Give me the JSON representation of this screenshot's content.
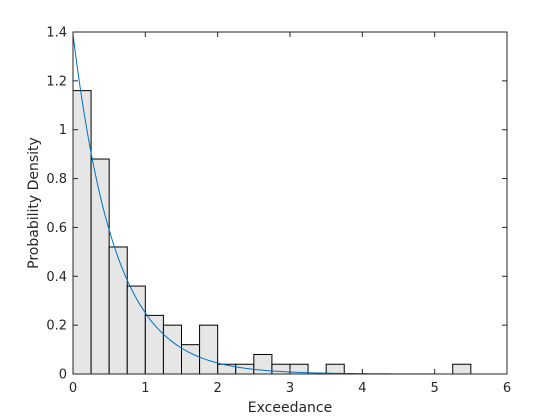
{
  "chart_data": {
    "type": "bar",
    "xlabel": "Exceedance",
    "ylabel": "Probability Density",
    "xlim": [
      0,
      6
    ],
    "ylim": [
      0,
      1.4
    ],
    "xticks": [
      0,
      1,
      2,
      3,
      4,
      5,
      6
    ],
    "yticks": [
      0,
      0.2,
      0.4,
      0.6,
      0.8,
      1,
      1.2,
      1.4
    ],
    "xtick_labels": [
      "0",
      "1",
      "2",
      "3",
      "4",
      "5",
      "6"
    ],
    "ytick_labels": [
      "0",
      "0.2",
      "0.4",
      "0.6",
      "0.8",
      "1",
      "1.2",
      "1.4"
    ],
    "grid": false,
    "box": true,
    "histogram": {
      "bin_edges": [
        0,
        0.25,
        0.5,
        0.75,
        1.0,
        1.25,
        1.5,
        1.75,
        2.0,
        2.25,
        2.5,
        2.75,
        3.0,
        3.25,
        3.5,
        3.75,
        4.0,
        4.25,
        4.5,
        4.75,
        5.0,
        5.25,
        5.5
      ],
      "values": [
        1.16,
        0.88,
        0.52,
        0.36,
        0.24,
        0.2,
        0.12,
        0.2,
        0.04,
        0.04,
        0.08,
        0.04,
        0.04,
        0.0,
        0.04,
        0.0,
        0.0,
        0.0,
        0.0,
        0.0,
        0.0,
        0.04
      ],
      "face_color": "#e6e6e6",
      "edge_color": "#000000"
    },
    "fitted_curve": {
      "type": "exponential",
      "x_range": [
        0,
        5.75
      ],
      "x": [
        0,
        0.25,
        0.5,
        0.75,
        1.0,
        1.25,
        1.5,
        1.75,
        2.0,
        2.25,
        2.5,
        2.75,
        3.0,
        3.25,
        3.5,
        3.75,
        4.0,
        4.25,
        4.5,
        4.75,
        5.0,
        5.25,
        5.5,
        5.75
      ],
      "y": [
        1.39,
        0.9,
        0.59,
        0.38,
        0.25,
        0.16,
        0.11,
        0.07,
        0.045,
        0.03,
        0.019,
        0.012,
        0.008,
        0.005,
        0.0034,
        0.0022,
        0.0014,
        0.0009,
        0.0006,
        0.0004,
        0.0003,
        0.0002,
        0.0001,
        0.0001
      ],
      "color": "#0072bd"
    }
  }
}
